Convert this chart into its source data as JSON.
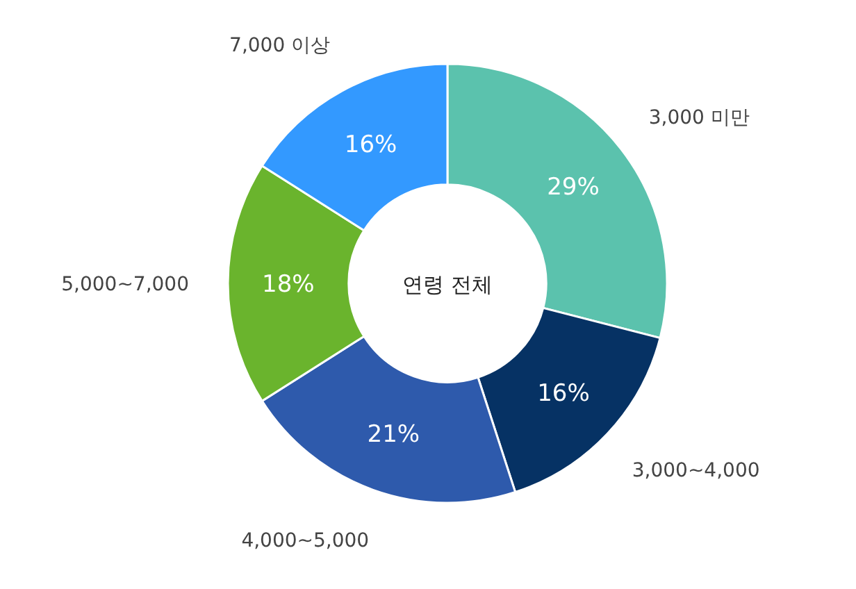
{
  "chart_data": {
    "type": "donut",
    "title": "연령 전체",
    "categories": [
      "3,000 미만",
      "3,000~4,000",
      "4,000~5,000",
      "5,000~7,000",
      "7,000 이상"
    ],
    "values": [
      29,
      16,
      21,
      18,
      16
    ],
    "colors": [
      "#5bc2ad",
      "#063264",
      "#2e5aac",
      "#6ab42d",
      "#3399ff"
    ],
    "value_labels": [
      "29%",
      "16%",
      "21%",
      "18%",
      "16%"
    ]
  }
}
